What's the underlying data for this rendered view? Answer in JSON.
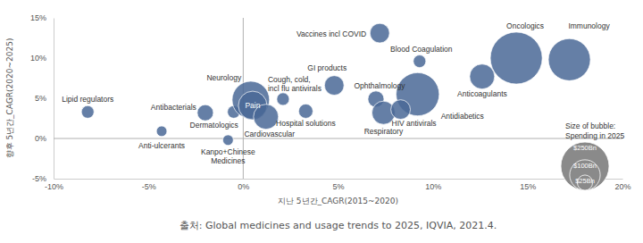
{
  "chart_data": {
    "type": "bubble",
    "x_label": "지난 5년간_CAGR(2015~2020)",
    "y_label": "향후 5년간_CAGR(2020~2025)",
    "source": "출처: Global medicines and usage trends to 2025, IQVIA, 2021.4.",
    "xlim": [
      -10,
      20
    ],
    "ylim": [
      -5,
      15
    ],
    "xticks": [
      {
        "value": -10,
        "label": "-10%"
      },
      {
        "value": -5,
        "label": "-5%"
      },
      {
        "value": 0,
        "label": "0%"
      },
      {
        "value": 5,
        "label": "5%"
      },
      {
        "value": 10,
        "label": "10%"
      },
      {
        "value": 15,
        "label": "15%"
      },
      {
        "value": 20,
        "label": "20%"
      }
    ],
    "yticks": [
      {
        "value": -5,
        "label": "-5%"
      },
      {
        "value": 0,
        "label": "0%"
      },
      {
        "value": 5,
        "label": "5%"
      },
      {
        "value": 10,
        "label": "10%"
      },
      {
        "value": 15,
        "label": "15%"
      }
    ],
    "labels": [
      "Lipid regulators",
      "Anti-ulcerants",
      "Antibacterials",
      "Kanpo+Chinese\nMedicines",
      "Dermatologics",
      "Neurology",
      "Pain",
      "Cardiovascular",
      "Cough, cold,\nincl flu antivirals",
      "Hospital solutions",
      "GI products",
      "Vaccines incl COVID",
      "Blood Coagulation",
      "Antidiabetics",
      "Ophthalmology",
      "Respiratory",
      "HIV antivirals",
      "Anticoagulants",
      "Oncologics",
      "Immunology"
    ],
    "x": [
      -8.2,
      -4.3,
      -2.0,
      -0.8,
      -0.5,
      0.4,
      0.5,
      1.2,
      2.1,
      3.3,
      4.8,
      7.2,
      9.3,
      9.2,
      7.0,
      7.4,
      8.3,
      12.6,
      14.4,
      17.2
    ],
    "y": [
      3.3,
      0.9,
      3.2,
      -0.2,
      3.3,
      4.8,
      4.1,
      2.7,
      4.9,
      3.4,
      6.6,
      13.1,
      9.6,
      5.5,
      4.9,
      3.2,
      3.6,
      7.7,
      10.0,
      9.8
    ],
    "sizes": [
      17,
      12,
      28,
      12,
      17,
      150,
      88,
      67,
      17,
      22,
      41,
      41,
      17,
      200,
      28,
      58,
      41,
      67,
      290,
      190
    ],
    "color": "#4a6896",
    "size_legend": {
      "title": "Size of bubble:\nSpending in 2025",
      "values": [
        250,
        100,
        25
      ],
      "labels": [
        "$250Bn",
        "$100Bn",
        "$25Bn"
      ]
    }
  }
}
